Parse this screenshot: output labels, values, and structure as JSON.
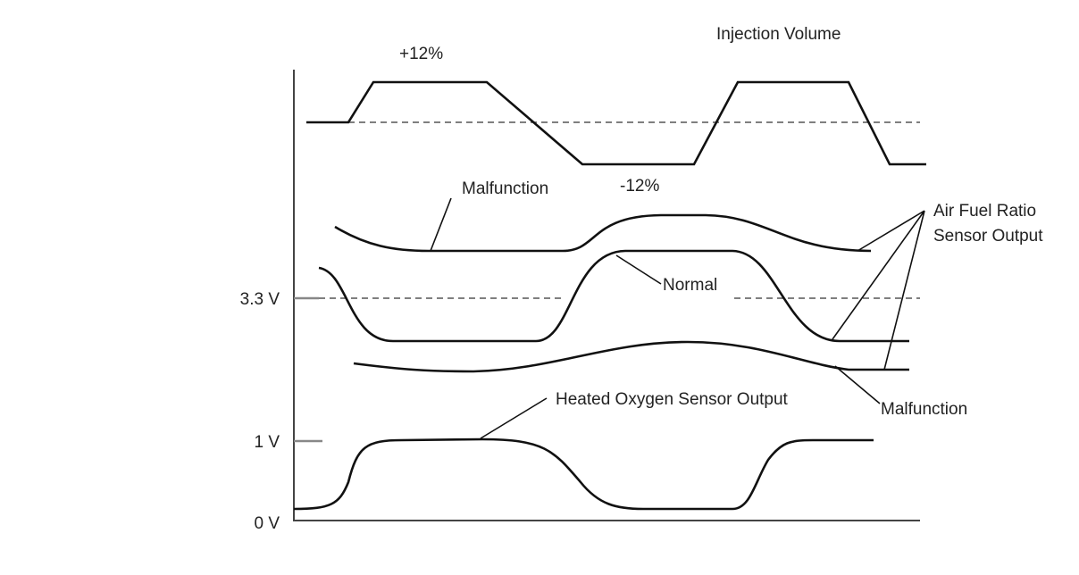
{
  "labels": {
    "injection_volume": "Injection Volume",
    "plus": "+12%",
    "minus": "-12%",
    "malfunction_upper": "Malfunction",
    "normal": "Normal",
    "afr_line1": "Air Fuel Ratio",
    "afr_line2": "Sensor Output",
    "malfunction_lower": "Malfunction",
    "ho2s": "Heated Oxygen Sensor Output"
  },
  "axis": {
    "y_ticks": [
      "3.3 V",
      "1 V",
      "0 V"
    ]
  },
  "colors": {
    "line": "#111111",
    "tick": "#888888"
  }
}
